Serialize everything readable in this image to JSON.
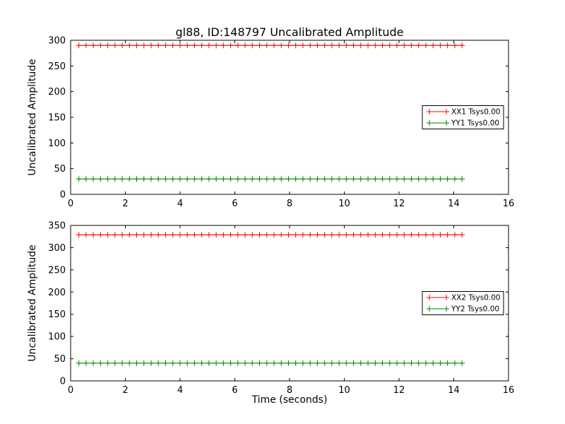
{
  "figure": {
    "title": "gl88, ID:148797 Uncalibrated Amplitude",
    "background_color": "#ffffff",
    "axis_color": "#000000"
  },
  "chart_data": [
    {
      "type": "line",
      "subplot": "top",
      "title": "",
      "xlabel": "",
      "ylabel": "Uncalibrated Amplitude",
      "xlim": [
        0,
        16
      ],
      "ylim": [
        0,
        300
      ],
      "xticks": [
        0,
        2,
        4,
        6,
        8,
        10,
        12,
        14,
        16
      ],
      "yticks": [
        0,
        50,
        100,
        150,
        200,
        250,
        300
      ],
      "grid": false,
      "legend_position": "center right",
      "series": [
        {
          "name": "XX1 Tsys0.00",
          "color": "#ff0000",
          "marker": "+",
          "linestyle": "solid",
          "x_start": 0.3,
          "x_end": 14.3,
          "n_points": 54,
          "y_constant": 290
        },
        {
          "name": "YY1 Tsys0.00",
          "color": "#008000",
          "marker": "+",
          "linestyle": "solid",
          "x_start": 0.3,
          "x_end": 14.3,
          "n_points": 54,
          "y_constant": 30
        }
      ]
    },
    {
      "type": "line",
      "subplot": "bottom",
      "title": "",
      "xlabel": "Time (seconds)",
      "ylabel": "Uncalibrated Amplitude",
      "xlim": [
        0,
        16
      ],
      "ylim": [
        0,
        350
      ],
      "xticks": [
        0,
        2,
        4,
        6,
        8,
        10,
        12,
        14,
        16
      ],
      "yticks": [
        0,
        50,
        100,
        150,
        200,
        250,
        300,
        350
      ],
      "grid": false,
      "legend_position": "center right",
      "series": [
        {
          "name": "XX2 Tsys0.00",
          "color": "#ff0000",
          "marker": "+",
          "linestyle": "solid",
          "x_start": 0.3,
          "x_end": 14.3,
          "n_points": 54,
          "y_constant": 329
        },
        {
          "name": "YY2 Tsys0.00",
          "color": "#008000",
          "marker": "+",
          "linestyle": "solid",
          "x_start": 0.3,
          "x_end": 14.3,
          "n_points": 54,
          "y_constant": 40
        }
      ]
    }
  ]
}
